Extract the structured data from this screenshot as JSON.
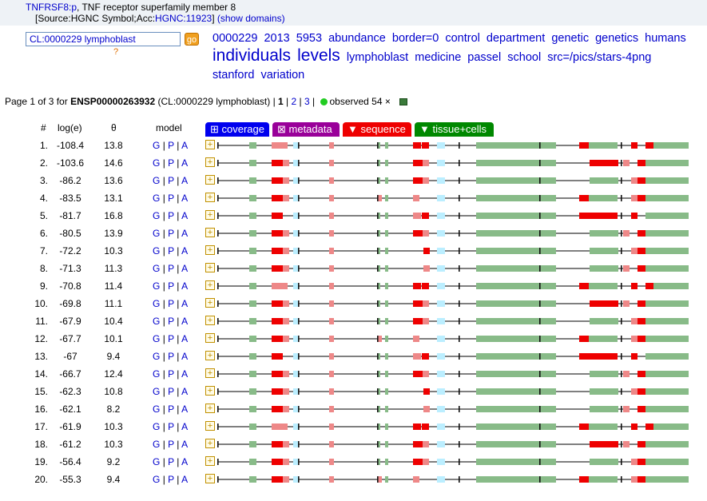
{
  "header": {
    "gene_link": "TNFRSF8:p",
    "gene_desc": ", TNF receptor superfamily member 8",
    "source_prefix": "[Source:HGNC Symbol;Acc:",
    "source_link": "HGNC:11923",
    "source_suffix": "]",
    "domains_link": "(show domains)"
  },
  "search": {
    "value": "CL:0000229 lymphoblast",
    "go_label": "go",
    "help": "?"
  },
  "cloud": [
    {
      "t": "0000229",
      "big": false
    },
    {
      "t": "2013",
      "big": false
    },
    {
      "t": "5953",
      "big": false
    },
    {
      "t": "abundance",
      "big": false
    },
    {
      "t": "border=0",
      "big": false
    },
    {
      "t": "control",
      "big": false
    },
    {
      "t": "department",
      "big": false
    },
    {
      "t": "genetic",
      "big": false
    },
    {
      "t": "genetics",
      "big": false
    },
    {
      "t": "humans",
      "big": false
    },
    {
      "t": "individuals",
      "big": true
    },
    {
      "t": "levels",
      "big": true
    },
    {
      "t": "lymphoblast",
      "big": false
    },
    {
      "t": "medicine",
      "big": false
    },
    {
      "t": "passel",
      "big": false
    },
    {
      "t": "school",
      "big": false
    },
    {
      "t": "src=/pics/stars-4png",
      "big": false
    },
    {
      "t": "stanford",
      "big": false
    },
    {
      "t": "variation",
      "big": false
    }
  ],
  "pager": {
    "prefix": "Page 1 of 3 for ",
    "protein": "ENSP00000263932",
    "query": " (CL:0000229 lymphoblast) | ",
    "p1": "1",
    "sep1": " | ",
    "p2": "2",
    "sep2": " | ",
    "p3": "3",
    "sep3": " |",
    "observed": "observed 54 ×"
  },
  "columns": {
    "num": "#",
    "loge": "log(e)",
    "theta": "θ",
    "model": "model"
  },
  "tabs": [
    {
      "label": "⊞ coverage",
      "color": "#0000ee"
    },
    {
      "label": "⊠ metadata",
      "color": "#990099"
    },
    {
      "label": "▼ sequence",
      "color": "#ee0000"
    },
    {
      "label": "▼ tissue+cells",
      "color": "#008800"
    }
  ],
  "model_links": {
    "g": "G",
    "p": "P",
    "a": "A",
    "sep": "|",
    "expand": "+"
  },
  "rows": [
    {
      "n": "1.",
      "loge": "-108.4",
      "theta": "13.8"
    },
    {
      "n": "2.",
      "loge": "-103.6",
      "theta": "14.6"
    },
    {
      "n": "3.",
      "loge": "-86.2",
      "theta": "13.6"
    },
    {
      "n": "4.",
      "loge": "-83.5",
      "theta": "13.1"
    },
    {
      "n": "5.",
      "loge": "-81.7",
      "theta": "16.8"
    },
    {
      "n": "6.",
      "loge": "-80.5",
      "theta": "13.9"
    },
    {
      "n": "7.",
      "loge": "-72.2",
      "theta": "10.3"
    },
    {
      "n": "8.",
      "loge": "-71.3",
      "theta": "11.3"
    },
    {
      "n": "9.",
      "loge": "-70.8",
      "theta": "11.4"
    },
    {
      "n": "10.",
      "loge": "-69.8",
      "theta": "11.1"
    },
    {
      "n": "11.",
      "loge": "-67.9",
      "theta": "10.4"
    },
    {
      "n": "12.",
      "loge": "-67.7",
      "theta": "10.1"
    },
    {
      "n": "13.",
      "loge": "-67",
      "theta": "9.4"
    },
    {
      "n": "14.",
      "loge": "-66.7",
      "theta": "12.4"
    },
    {
      "n": "15.",
      "loge": "-62.3",
      "theta": "10.8"
    },
    {
      "n": "16.",
      "loge": "-62.1",
      "theta": "8.2"
    },
    {
      "n": "17.",
      "loge": "-61.9",
      "theta": "10.3"
    },
    {
      "n": "18.",
      "loge": "-61.2",
      "theta": "10.3"
    },
    {
      "n": "19.",
      "loge": "-56.4",
      "theta": "9.2"
    },
    {
      "n": "20.",
      "loge": "-55.3",
      "theta": "9.4"
    }
  ],
  "colors": {
    "red": "#ee0000",
    "pink": "#ee8888",
    "green": "#88bb88",
    "cyan": "#bbeeff",
    "line": "#555555"
  }
}
